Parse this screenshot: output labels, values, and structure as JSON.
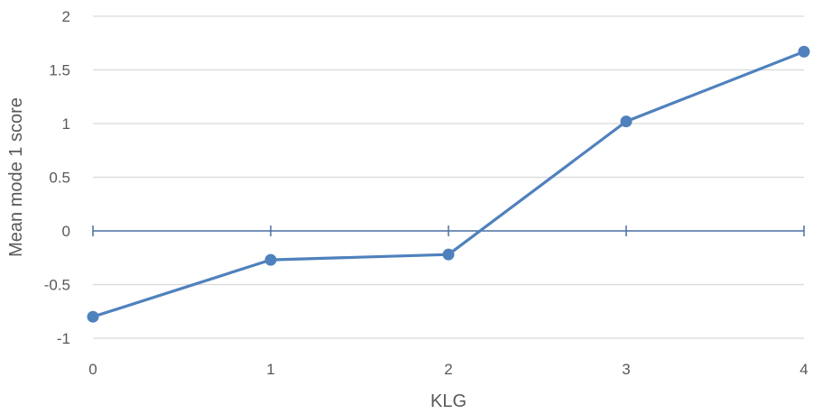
{
  "chart_data": {
    "type": "line",
    "title": "",
    "xlabel": "KLG",
    "ylabel": "Mean mode 1 score",
    "x": [
      0,
      1,
      2,
      3,
      4
    ],
    "x_tick_labels": [
      "0",
      "1",
      "2",
      "3",
      "4"
    ],
    "y_tick_labels": [
      "2",
      "1.5",
      "1",
      "0.5",
      "0",
      "-0.5",
      "-1"
    ],
    "ylim": [
      -1,
      2
    ],
    "ytick_step": 0.5,
    "grid": "horizontal",
    "legend": "none",
    "series": [
      {
        "values": [
          -0.8,
          -0.27,
          -0.22,
          1.02,
          1.67
        ],
        "color": "#4f81bd"
      }
    ],
    "gridline_color": "#d9d9d9",
    "axis_color": "#4a6fa0"
  }
}
